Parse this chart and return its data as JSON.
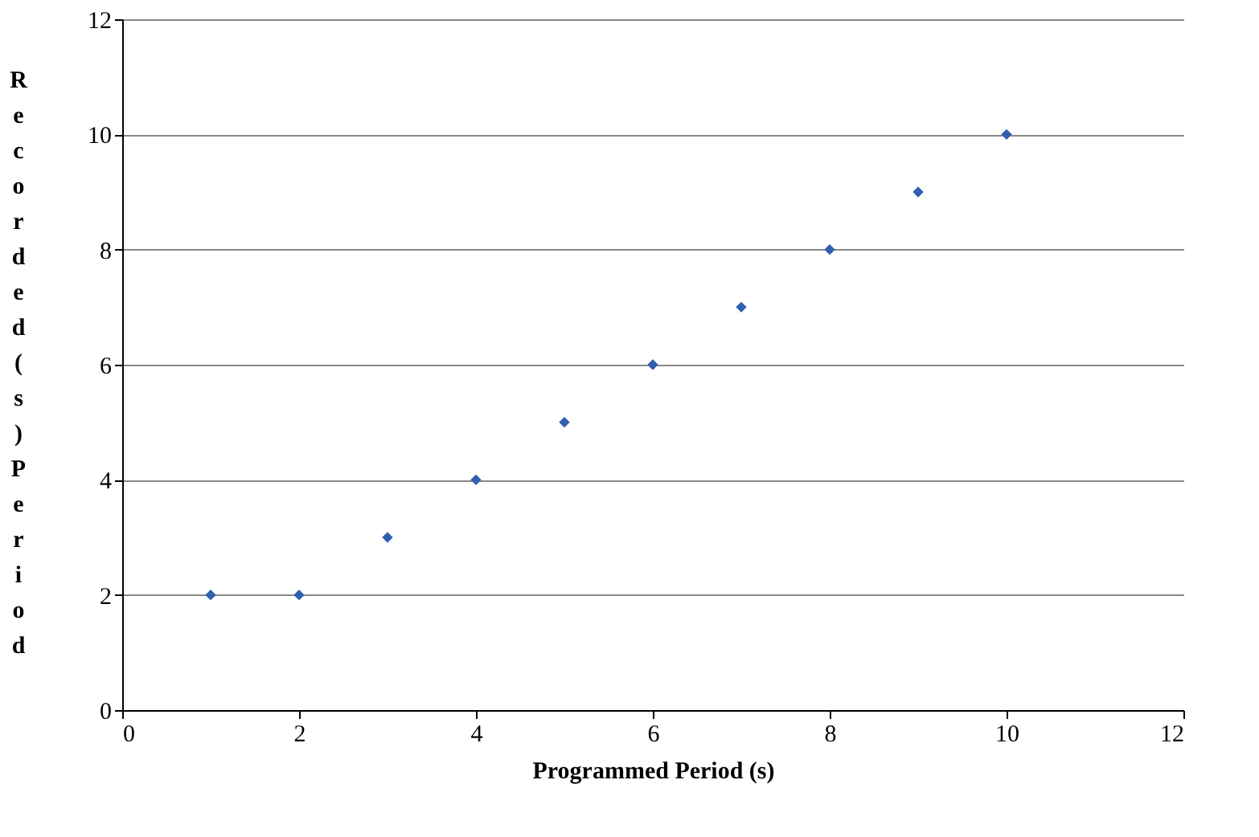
{
  "chart_data": {
    "type": "scatter",
    "xlabel": "Programmed Period (s)",
    "ylabel": "Recorded (s) Period",
    "x": [
      1,
      2,
      3,
      4,
      5,
      6,
      7,
      8,
      9,
      10
    ],
    "series": [
      {
        "color": "#2f5fae",
        "values": [
          2,
          2,
          3,
          4,
          5,
          6,
          7,
          8,
          9,
          10
        ]
      }
    ],
    "xlim": [
      0,
      12
    ],
    "ylim": [
      0,
      12
    ],
    "xticks": [
      0,
      2,
      4,
      6,
      8,
      10,
      12
    ],
    "yticks": [
      0,
      2,
      4,
      6,
      8,
      10,
      12
    ],
    "grid": "y",
    "marker": "diamond"
  }
}
